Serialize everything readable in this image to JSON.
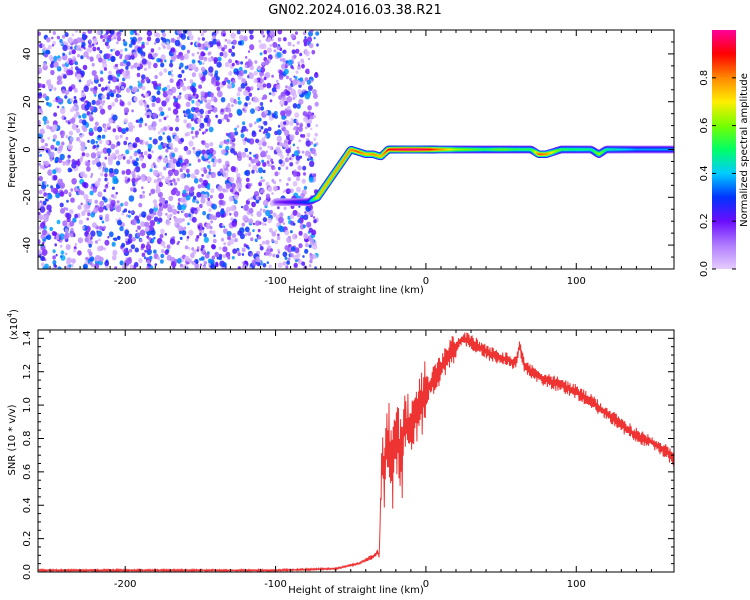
{
  "title": "GN02.2024.016.03.38.R21",
  "chart_data": [
    {
      "type": "heatmap",
      "title": "GN02.2024.016.03.38.R21",
      "xlabel": "Height of straight line (km)",
      "ylabel": "Frequency (Hz)",
      "xlim": [
        -258,
        165
      ],
      "ylim": [
        -50,
        50
      ],
      "xticks": [
        -200,
        -100,
        0,
        100
      ],
      "yticks": [
        -40,
        -20,
        0,
        20,
        40
      ],
      "colorbar": {
        "label": "Normalized spectral amplitude",
        "ticks": [
          "0.0",
          "0.2",
          "0.4",
          "0.6",
          "0.8"
        ],
        "range": [
          0,
          1
        ],
        "colors": [
          "#e6ccff",
          "#b07cff",
          "#6a0dff",
          "#0033ff",
          "#00ccff",
          "#00ff66",
          "#77ff00",
          "#ffee00",
          "#ff8800",
          "#ff0000",
          "#ff0099"
        ]
      },
      "noise_region_x": [
        -258,
        -72
      ],
      "ridge": {
        "x": [
          -100,
          -78,
          -72,
          -50,
          -45,
          -40,
          -35,
          -30,
          -25,
          -20,
          -10,
          0,
          20,
          40,
          50,
          60,
          70,
          75,
          80,
          90,
          110,
          115,
          120,
          140,
          165
        ],
        "freq": [
          -22,
          -22,
          -20,
          0,
          -1,
          -2,
          -2,
          -3,
          0,
          0,
          0,
          0,
          0,
          0,
          0,
          0,
          0,
          -2,
          -2,
          0,
          0,
          -2,
          0,
          0,
          0
        ],
        "amplitude": [
          0.15,
          0.3,
          0.7,
          0.75,
          0.8,
          0.7,
          0.75,
          0.7,
          0.85,
          0.9,
          0.95,
          0.9,
          0.6,
          0.5,
          0.55,
          0.5,
          0.5,
          0.8,
          0.75,
          0.5,
          0.45,
          0.6,
          0.45,
          0.35,
          0.35
        ]
      }
    },
    {
      "type": "line",
      "xlabel": "Height of straight line (km)",
      "ylabel": "SNR (10 * v/v)",
      "ymultiplier": "(x10",
      "ymultiplier_exp": "4",
      "xlim": [
        -258,
        165
      ],
      "ylim": [
        0,
        1.45
      ],
      "xticks": [
        -200,
        -100,
        0,
        100
      ],
      "yticks": [
        "0.0",
        "0.2",
        "0.4",
        "0.6",
        "0.8",
        "1.0",
        "1.2",
        "1.4"
      ],
      "color": "#ee3333",
      "series": [
        {
          "x": [
            -258,
            -200,
            -150,
            -100,
            -60,
            -45,
            -38,
            -34,
            -32,
            -31,
            -30,
            -29,
            -28,
            -27,
            -25,
            -22,
            -20,
            -18,
            -16,
            -14,
            -12,
            -10,
            -5,
            0,
            5,
            10,
            15,
            20,
            25,
            30,
            35,
            40,
            45,
            50,
            55,
            60,
            62,
            65,
            70,
            80,
            90,
            100,
            110,
            120,
            130,
            140,
            150,
            160,
            165
          ],
          "y": [
            0.01,
            0.01,
            0.01,
            0.01,
            0.02,
            0.05,
            0.08,
            0.1,
            0.12,
            0.09,
            0.5,
            0.78,
            0.5,
            0.72,
            0.8,
            0.6,
            0.85,
            0.75,
            0.62,
            0.95,
            0.82,
            0.88,
            0.98,
            1.08,
            1.15,
            1.22,
            1.3,
            1.35,
            1.4,
            1.38,
            1.35,
            1.32,
            1.3,
            1.28,
            1.27,
            1.25,
            1.36,
            1.25,
            1.2,
            1.15,
            1.12,
            1.08,
            1.02,
            0.95,
            0.88,
            0.82,
            0.78,
            0.72,
            0.67
          ]
        }
      ]
    }
  ]
}
